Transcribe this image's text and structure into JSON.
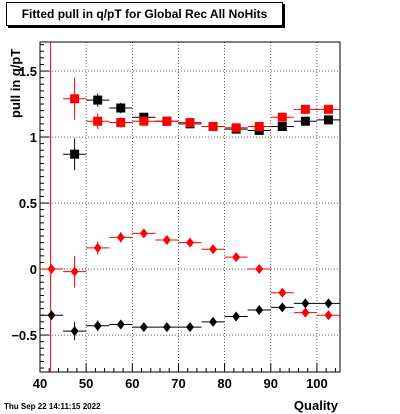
{
  "title": "Fitted pull in q/pT for Global Rec All NoHits",
  "timestamp": "Thu Sep 22 14:11:15 2022",
  "chart_data": {
    "type": "scatter",
    "title": "Fitted pull in q/pT for Global Rec All NoHits",
    "xlabel": "Quality",
    "ylabel": "pull in q/pT",
    "xlim": [
      40,
      105
    ],
    "ylim": [
      -0.78,
      1.72
    ],
    "grid": true,
    "x_ticks": [
      40,
      50,
      60,
      70,
      80,
      90,
      100
    ],
    "y_ticks": [
      -0.5,
      0,
      0.5,
      1,
      1.5
    ],
    "x_tick_labels": [
      "40",
      "50",
      "60",
      "70",
      "80",
      "90",
      "100"
    ],
    "y_tick_labels": [
      "−0.5",
      "0",
      "0.5",
      "1",
      "1.5"
    ],
    "reference_line_x": 42.3,
    "series": [
      {
        "color": "#000000",
        "marker": "square",
        "x": [
          47.5,
          52.5,
          57.5,
          62.5,
          67.5,
          72.5,
          77.5,
          82.5,
          87.5,
          92.5,
          97.5,
          102.5
        ],
        "y": [
          0.87,
          1.28,
          1.22,
          1.15,
          1.12,
          1.1,
          1.08,
          1.06,
          1.05,
          1.08,
          1.12,
          1.13
        ],
        "yerr": [
          0.12,
          0.05,
          0.04,
          0.03,
          0.02,
          0.02,
          0.02,
          0.02,
          0.02,
          0.02,
          0.02,
          0.02
        ]
      },
      {
        "color": "#ff0000",
        "marker": "square",
        "x": [
          47.5,
          52.5,
          57.5,
          62.5,
          67.5,
          72.5,
          77.5,
          82.5,
          87.5,
          92.5,
          97.5,
          102.5
        ],
        "y": [
          1.29,
          1.12,
          1.11,
          1.12,
          1.12,
          1.11,
          1.08,
          1.07,
          1.08,
          1.15,
          1.21,
          1.21
        ],
        "yerr": [
          0.16,
          0.06,
          0.04,
          0.03,
          0.02,
          0.02,
          0.02,
          0.02,
          0.02,
          0.02,
          0.02,
          0.02
        ]
      },
      {
        "color": "#ff0000",
        "marker": "diamond",
        "x": [
          42.5,
          47.5,
          52.5,
          57.5,
          62.5,
          67.5,
          72.5,
          77.5,
          82.5,
          87.5,
          92.5,
          97.5,
          102.5
        ],
        "y": [
          0.0,
          -0.02,
          0.16,
          0.24,
          0.27,
          0.22,
          0.2,
          0.15,
          0.09,
          0.0,
          -0.18,
          -0.33,
          -0.35
        ],
        "yerr": [
          0.0,
          0.12,
          0.05,
          0.04,
          0.03,
          0.02,
          0.02,
          0.02,
          0.02,
          0.02,
          0.02,
          0.02,
          0.02
        ]
      },
      {
        "color": "#000000",
        "marker": "diamond",
        "x": [
          42.5,
          47.5,
          52.5,
          57.5,
          62.5,
          67.5,
          72.5,
          77.5,
          82.5,
          87.5,
          92.5,
          97.5,
          102.5
        ],
        "y": [
          -0.35,
          -0.47,
          -0.43,
          -0.42,
          -0.44,
          -0.44,
          -0.44,
          -0.4,
          -0.36,
          -0.31,
          -0.29,
          -0.26,
          -0.26
        ],
        "yerr": [
          0.0,
          0.07,
          0.04,
          0.03,
          0.02,
          0.02,
          0.02,
          0.02,
          0.02,
          0.02,
          0.02,
          0.02,
          0.02
        ]
      }
    ]
  }
}
